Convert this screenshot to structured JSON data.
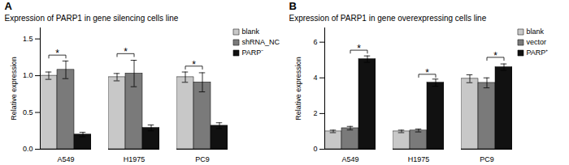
{
  "chart_data": [
    {
      "type": "bar",
      "panel_label": "A",
      "title": "Expression of PARP1 in gene silencing cells line",
      "ylabel": "Relative expression",
      "categories": [
        "A549",
        "H1975",
        "PC9"
      ],
      "series": [
        {
          "name": "blank",
          "color": "#c8c8c8",
          "values": [
            1.0,
            0.98,
            0.98
          ],
          "errors": [
            0.05,
            0.05,
            0.07
          ]
        },
        {
          "name": "shRNA_NC",
          "color": "#7a7a7a",
          "values": [
            1.08,
            1.03,
            0.91
          ],
          "errors": [
            0.12,
            0.18,
            0.13
          ]
        },
        {
          "name": "PARP⁻",
          "color": "#111111",
          "values": [
            0.2,
            0.29,
            0.32
          ],
          "errors": [
            0.03,
            0.04,
            0.04
          ]
        }
      ],
      "ylim": [
        0,
        1.65
      ],
      "yticks": [
        {
          "value": 0,
          "label": "0.0"
        },
        0.5,
        {
          "value": 1,
          "label": "1.0"
        },
        1.5
      ],
      "legend": "right",
      "annotations": [
        {
          "text": "*",
          "category": "A549",
          "from": "blank",
          "to": "shRNA_NC",
          "y": 1.28
        },
        {
          "text": "*",
          "category": "H1975",
          "from": "blank",
          "to": "shRNA_NC",
          "y": 1.3
        },
        {
          "text": "*",
          "category": "PC9",
          "from": "blank",
          "to": "shRNA_NC",
          "y": 1.13
        }
      ]
    },
    {
      "type": "bar",
      "panel_label": "B",
      "title": "Expression of PARP1 in gene overexpressing cells line",
      "ylabel": "Relative expression",
      "categories": [
        "A549",
        "H1975",
        "PC9"
      ],
      "series": [
        {
          "name": "blank",
          "color": "#c8c8c8",
          "values": [
            1.0,
            1.0,
            3.95
          ],
          "errors": [
            0.07,
            0.07,
            0.22
          ]
        },
        {
          "name": "vector",
          "color": "#7a7a7a",
          "values": [
            1.18,
            1.05,
            3.72
          ],
          "errors": [
            0.1,
            0.08,
            0.28
          ]
        },
        {
          "name": "PARP⁺",
          "color": "#111111",
          "values": [
            5.05,
            3.73,
            4.6
          ],
          "errors": [
            0.18,
            0.2,
            0.18
          ]
        }
      ],
      "ylim": [
        0,
        6.8
      ],
      "yticks": [
        0,
        2,
        4,
        6
      ],
      "legend": "right",
      "annotations": [
        {
          "text": "*",
          "category": "A549",
          "from": "vector",
          "to": "PARP⁺",
          "y": 5.55
        },
        {
          "text": "*",
          "category": "H1975",
          "from": "vector",
          "to": "PARP⁺",
          "y": 4.2
        },
        {
          "text": "*",
          "category": "PC9",
          "from": "vector",
          "to": "PARP⁺",
          "y": 5.15
        }
      ]
    }
  ]
}
